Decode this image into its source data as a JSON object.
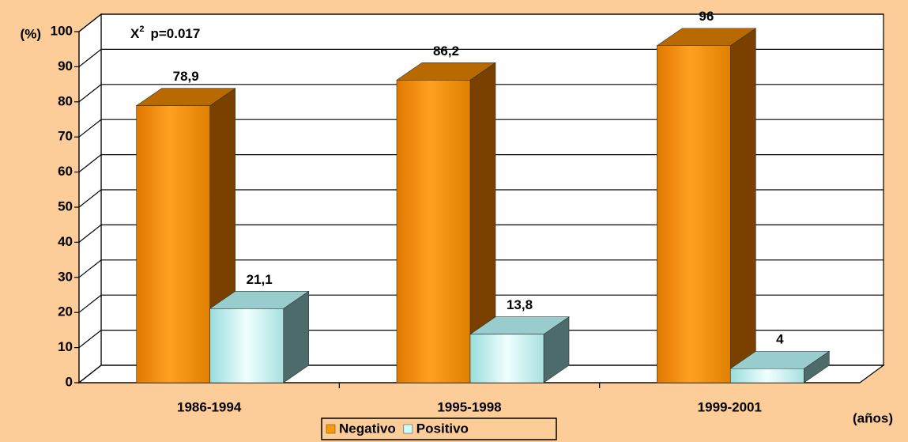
{
  "chart_data": {
    "type": "bar3d",
    "y_label": "(%)",
    "x_label": "(años)",
    "annotation": {
      "base": "X",
      "sup": "2",
      "text": "p=0.017"
    },
    "categories": [
      "1986-1994",
      "1995-1998",
      "1999-2001"
    ],
    "series": [
      {
        "name": "Negativo",
        "color": "#ff9900",
        "values": [
          78.9,
          86.2,
          96
        ],
        "value_labels": [
          "78,9",
          "86,2",
          "96"
        ]
      },
      {
        "name": "Positivo",
        "color": "#ccffff",
        "values": [
          21.1,
          13.8,
          4
        ],
        "value_labels": [
          "21,1",
          "13,8",
          "4"
        ]
      }
    ],
    "ylim": [
      0,
      100
    ],
    "yticks": [
      0,
      10,
      20,
      30,
      40,
      50,
      60,
      70,
      80,
      90,
      100
    ],
    "grid": true
  }
}
